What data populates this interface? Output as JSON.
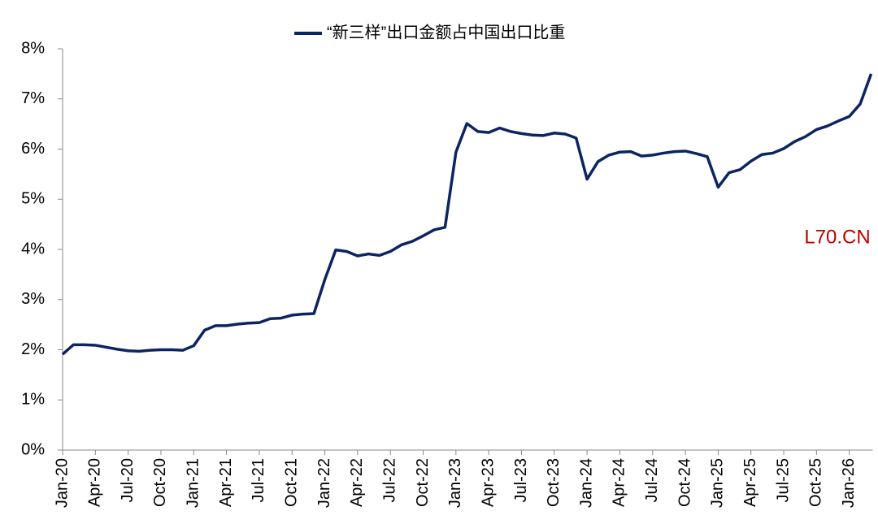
{
  "chart_data": {
    "type": "line",
    "categories": [
      "Jan-20",
      null,
      null,
      "Apr-20",
      null,
      null,
      "Jul-20",
      null,
      null,
      "Oct-20",
      null,
      null,
      "Jan-21",
      null,
      null,
      "Apr-21",
      null,
      null,
      "Jul-21",
      null,
      null,
      "Oct-21",
      null,
      null,
      "Jan-22",
      null,
      null,
      "Apr-22",
      null,
      null,
      "Jul-22",
      null,
      null,
      "Oct-22",
      null,
      null,
      "Jan-23",
      null,
      null,
      "Apr-23",
      null,
      null,
      "Jul-23",
      null,
      null,
      "Oct-23",
      null,
      null,
      "Jan-24",
      null,
      null,
      "Apr-24",
      null,
      null,
      "Jul-24",
      null,
      null,
      "Oct-24",
      null,
      null,
      "Jan-25",
      null,
      null,
      "Apr-25",
      null,
      null,
      "Jul-25",
      null,
      null,
      "Oct-25",
      null,
      null,
      "Jan-26",
      null,
      null
    ],
    "series": [
      {
        "name": "“新三样”出口金额占中国出口比重",
        "color": "#0c2461",
        "values": [
          1.91,
          2.1,
          2.1,
          2.09,
          2.05,
          2.01,
          1.98,
          1.97,
          1.99,
          2.0,
          2.0,
          1.99,
          2.08,
          2.39,
          2.48,
          2.48,
          2.51,
          2.53,
          2.54,
          2.62,
          2.63,
          2.69,
          2.71,
          2.72,
          3.4,
          3.99,
          3.96,
          3.87,
          3.91,
          3.88,
          3.96,
          4.09,
          4.16,
          4.27,
          4.39,
          4.44,
          5.94,
          6.51,
          6.35,
          6.33,
          6.42,
          6.35,
          6.31,
          6.28,
          6.27,
          6.32,
          6.3,
          6.22,
          5.4,
          5.75,
          5.88,
          5.94,
          5.95,
          5.86,
          5.88,
          5.92,
          5.95,
          5.96,
          5.91,
          5.85,
          5.24,
          5.53,
          5.59,
          5.76,
          5.89,
          5.92,
          6.01,
          6.15,
          6.25,
          6.39,
          6.46,
          6.56,
          6.65,
          6.9,
          7.5
        ]
      }
    ],
    "ylim": [
      0,
      8
    ],
    "yticks": [
      {
        "value": 0,
        "label": "0%"
      },
      {
        "value": 1,
        "label": "1%"
      },
      {
        "value": 2,
        "label": "2%"
      },
      {
        "value": 3,
        "label": "3%"
      },
      {
        "value": 4,
        "label": "4%"
      },
      {
        "value": 5,
        "label": "5%"
      },
      {
        "value": 6,
        "label": "6%"
      },
      {
        "value": 7,
        "label": "7%"
      },
      {
        "value": 8,
        "label": "8%"
      }
    ],
    "legend": "top",
    "annotations": [
      "L70.CN"
    ]
  }
}
